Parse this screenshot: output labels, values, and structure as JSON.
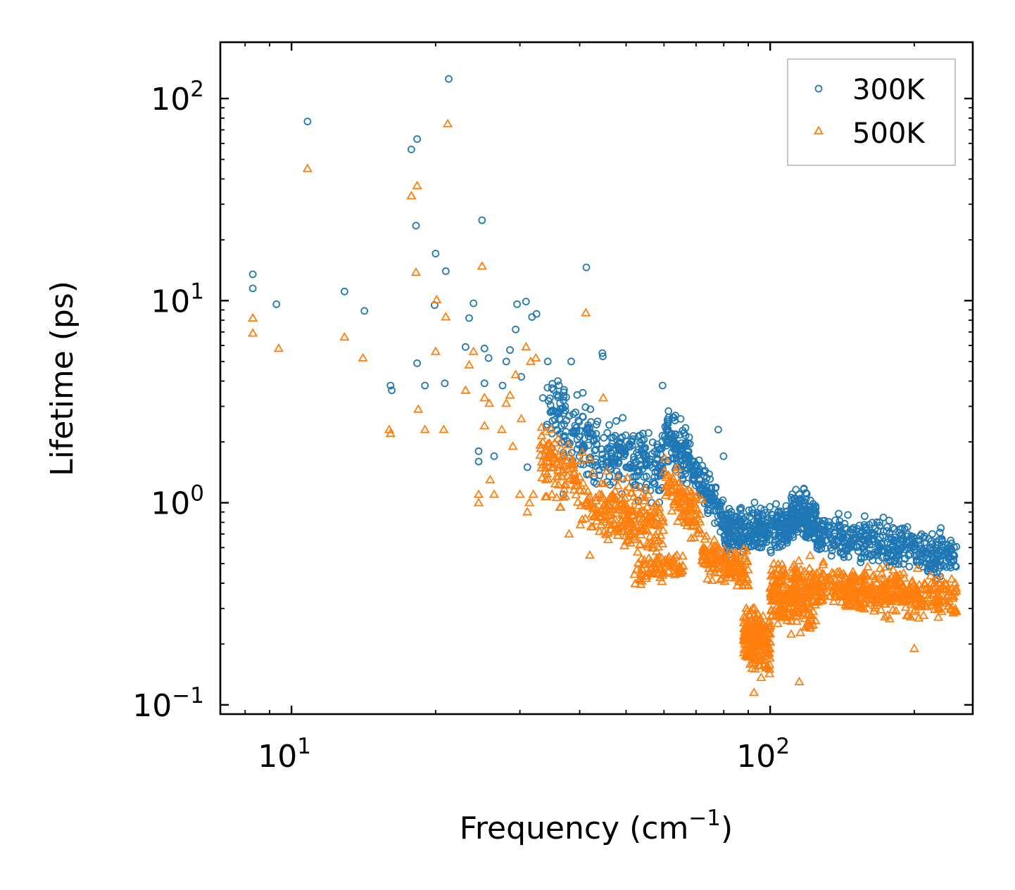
{
  "chart_data": {
    "type": "scatter",
    "title": "",
    "xlabel": "Frequency",
    "xlabel_unit_base": "(cm",
    "xlabel_unit_exp": "−1",
    "xlabel_unit_close": ")",
    "ylabel": "Lifetime (ps)",
    "xscale": "log",
    "yscale": "log",
    "xlim": [
      7.1,
      265
    ],
    "ylim": [
      0.09,
      190
    ],
    "xticks": [
      {
        "value": 10,
        "base": "10",
        "exp": "1"
      },
      {
        "value": 100,
        "base": "10",
        "exp": "2"
      }
    ],
    "yticks": [
      {
        "value": 0.1,
        "base": "10",
        "exp": "−1"
      },
      {
        "value": 1,
        "base": "10",
        "exp": "0"
      },
      {
        "value": 10,
        "base": "10",
        "exp": "1"
      },
      {
        "value": 100,
        "base": "10",
        "exp": "2"
      }
    ],
    "legend_position": "top-right",
    "series": [
      {
        "name": "300K",
        "marker": "circle",
        "color": "#1f77b4",
        "points": [
          [
            8.3,
            13.5
          ],
          [
            8.3,
            11.5
          ],
          [
            9.3,
            9.6
          ],
          [
            10.8,
            77
          ],
          [
            12.9,
            11.1
          ],
          [
            14.2,
            8.9
          ],
          [
            16.1,
            3.8
          ],
          [
            16.2,
            3.6
          ],
          [
            17.8,
            56
          ],
          [
            18.3,
            63
          ],
          [
            18.2,
            23.5
          ],
          [
            18.3,
            4.9
          ],
          [
            19.0,
            3.8
          ],
          [
            20.0,
            17.1
          ],
          [
            21.0,
            14.0
          ],
          [
            21.3,
            125
          ],
          [
            19.9,
            9.5
          ],
          [
            20.9,
            3.9
          ],
          [
            23.1,
            5.9
          ],
          [
            23.5,
            8.2
          ],
          [
            24.0,
            9.7
          ],
          [
            24.6,
            1.8
          ],
          [
            24.6,
            1.6
          ],
          [
            25.0,
            25
          ],
          [
            25.3,
            3.9
          ],
          [
            25.3,
            5.8
          ],
          [
            25.8,
            5.2
          ],
          [
            26.5,
            1.7
          ],
          [
            27.6,
            3.8
          ],
          [
            28.1,
            5.0
          ],
          [
            28.6,
            5.7
          ],
          [
            29.4,
            7.2
          ],
          [
            29.6,
            9.6
          ],
          [
            30.2,
            4.2
          ],
          [
            30.9,
            9.9
          ],
          [
            31.1,
            1.5
          ],
          [
            31.8,
            8.3
          ],
          [
            32.5,
            8.6
          ],
          [
            33.5,
            3.3
          ],
          [
            34.3,
            5.0
          ],
          [
            36.0,
            4.0
          ],
          [
            38.4,
            5.0
          ],
          [
            39.2,
            2.8
          ],
          [
            40.6,
            3.5
          ],
          [
            41.3,
            14.6
          ],
          [
            44.6,
            5.5
          ],
          [
            44.7,
            5.3
          ],
          [
            59.6,
            3.8
          ],
          [
            63.4,
            2.7
          ],
          [
            65.0,
            2.6
          ],
          [
            77.9,
            2.3
          ],
          [
            79.9,
            1.7
          ],
          [
            35,
            2.2
          ],
          [
            37,
            1.1
          ]
        ],
        "bands": [
          {
            "x_start": 34,
            "x_end": 46,
            "y_start": 3.0,
            "y_end": 1.6,
            "spread": 0.8,
            "count": 150
          },
          {
            "x_start": 46,
            "x_end": 60,
            "y_start": 1.8,
            "y_end": 1.5,
            "spread": 0.8,
            "count": 170
          },
          {
            "x_start": 60,
            "x_end": 68,
            "y_start": 2.3,
            "y_end": 1.6,
            "spread": 0.6,
            "count": 100
          },
          {
            "x_start": 68,
            "x_end": 80,
            "y_start": 1.5,
            "y_end": 0.85,
            "spread": 0.45,
            "count": 110
          },
          {
            "x_start": 80,
            "x_end": 110,
            "y_start": 0.7,
            "y_end": 0.75,
            "spread": 0.55,
            "count": 300
          },
          {
            "x_start": 110,
            "x_end": 125,
            "y_start": 0.9,
            "y_end": 0.8,
            "spread": 0.55,
            "count": 180
          },
          {
            "x_start": 125,
            "x_end": 245,
            "y_start": 0.7,
            "y_end": 0.55,
            "spread": 0.55,
            "count": 420
          }
        ]
      },
      {
        "name": "500K",
        "marker": "triangle",
        "color": "#ff7f0e",
        "points": [
          [
            8.3,
            8.2
          ],
          [
            8.3,
            6.9
          ],
          [
            9.4,
            5.8
          ],
          [
            10.8,
            45
          ],
          [
            12.9,
            6.6
          ],
          [
            14.1,
            5.2
          ],
          [
            16.0,
            2.3
          ],
          [
            16.1,
            2.2
          ],
          [
            17.8,
            33
          ],
          [
            18.3,
            37
          ],
          [
            18.2,
            13.8
          ],
          [
            18.4,
            2.9
          ],
          [
            19.0,
            2.3
          ],
          [
            20.0,
            5.6
          ],
          [
            20.1,
            10.1
          ],
          [
            20.8,
            2.3
          ],
          [
            21.2,
            75
          ],
          [
            21.0,
            8.3
          ],
          [
            23.1,
            3.6
          ],
          [
            23.5,
            4.8
          ],
          [
            24.0,
            5.6
          ],
          [
            24.6,
            1.1
          ],
          [
            24.6,
            1.0
          ],
          [
            25.0,
            14.8
          ],
          [
            25.3,
            2.4
          ],
          [
            25.3,
            3.3
          ],
          [
            25.9,
            3.1
          ],
          [
            26.0,
            1.3
          ],
          [
            26.5,
            1.1
          ],
          [
            27.5,
            2.3
          ],
          [
            28.1,
            3.1
          ],
          [
            28.6,
            3.4
          ],
          [
            29.0,
            1.9
          ],
          [
            29.4,
            4.3
          ],
          [
            30.0,
            1.1
          ],
          [
            30.2,
            2.6
          ],
          [
            30.9,
            5.9
          ],
          [
            31.1,
            0.9
          ],
          [
            31.4,
            1.0
          ],
          [
            31.6,
            5.0
          ],
          [
            32.0,
            1.1
          ],
          [
            32.4,
            5.2
          ],
          [
            33.5,
            2.0
          ],
          [
            34.0,
            1.3
          ],
          [
            35.0,
            1.1
          ],
          [
            38.0,
            0.7
          ],
          [
            41.2,
            8.7
          ],
          [
            42.0,
            0.55
          ],
          [
            44.8,
            3.3
          ],
          [
            92.5,
            0.115
          ],
          [
            115,
            0.13
          ],
          [
            200,
            0.19
          ],
          [
            245,
            0.29
          ]
        ],
        "bands": [
          {
            "x_start": 33,
            "x_end": 46,
            "y_start": 1.7,
            "y_end": 0.9,
            "spread": 0.8,
            "count": 150
          },
          {
            "x_start": 46,
            "x_end": 60,
            "y_start": 1.0,
            "y_end": 0.7,
            "spread": 0.8,
            "count": 170
          },
          {
            "x_start": 52,
            "x_end": 66,
            "y_start": 0.45,
            "y_end": 0.5,
            "spread": 0.3,
            "count": 80
          },
          {
            "x_start": 60,
            "x_end": 72,
            "y_start": 1.2,
            "y_end": 0.8,
            "spread": 0.6,
            "count": 100
          },
          {
            "x_start": 72,
            "x_end": 90,
            "y_start": 0.55,
            "y_end": 0.45,
            "spread": 0.45,
            "count": 150
          },
          {
            "x_start": 88,
            "x_end": 100,
            "y_start": 0.22,
            "y_end": 0.2,
            "spread": 0.7,
            "count": 220
          },
          {
            "x_start": 100,
            "x_end": 125,
            "y_start": 0.35,
            "y_end": 0.35,
            "spread": 0.8,
            "count": 260
          },
          {
            "x_start": 125,
            "x_end": 245,
            "y_start": 0.38,
            "y_end": 0.34,
            "spread": 0.5,
            "count": 420
          }
        ]
      }
    ]
  }
}
